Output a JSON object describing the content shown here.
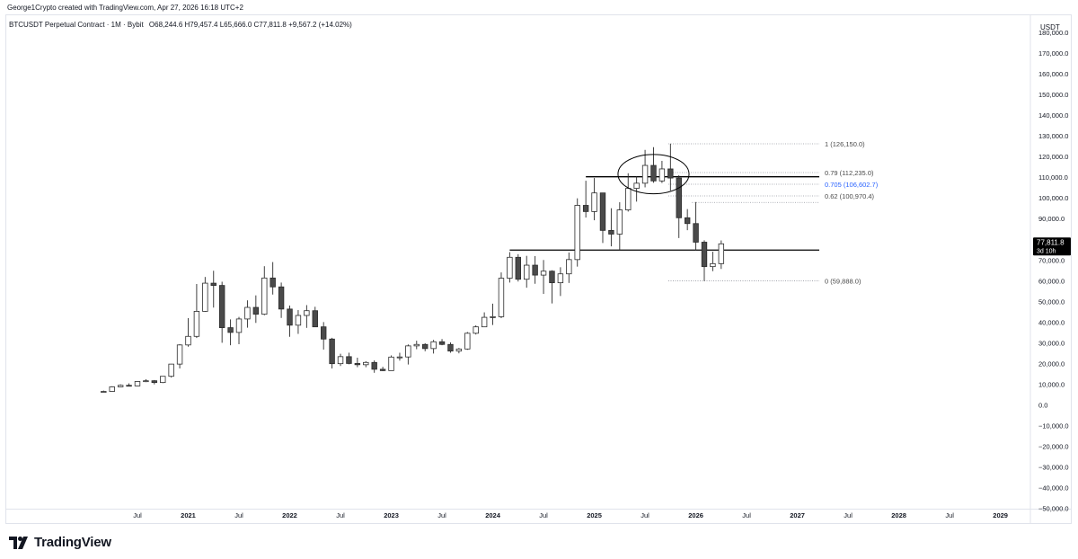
{
  "header": {
    "credit": "George1Crypto created with TradingView.com, Apr 27, 2026 16:18 UTC+2"
  },
  "legend": {
    "symbol": "BTCUSDT Perpetual Contract · 1M · Bybit",
    "open": "O68,244.6",
    "high": "H79,457.4",
    "low": "L65,666.0",
    "close": "C77,811.8",
    "change": "+9,567.2 (+14.02%)"
  },
  "footer": {
    "brand": "TradingView"
  },
  "colors": {
    "up": "#ffffff",
    "down": "#4a4a4a",
    "outline": "#2b2b2b",
    "accent_fib": "#2962ff",
    "price_tag": "#000000"
  },
  "chart_data": {
    "type": "candlestick",
    "currency_label": "USDT",
    "ylim": [
      -50000,
      185000
    ],
    "xlim": [
      "2020-01",
      "2029-06"
    ],
    "y_ticks": [
      180000,
      170000,
      160000,
      150000,
      140000,
      130000,
      120000,
      110000,
      100000,
      90000,
      80000,
      70000,
      60000,
      50000,
      40000,
      30000,
      20000,
      10000,
      0,
      -10000,
      -20000,
      -30000,
      -40000,
      -50000
    ],
    "y_tick_labels": [
      "180,000.0",
      "170,000.0",
      "160,000.0",
      "150,000.0",
      "140,000.0",
      "130,000.0",
      "120,000.0",
      "110,000.0",
      "100,000.0",
      "90,000.0",
      "80,000.0",
      "70,000.0",
      "60,000.0",
      "50,000.0",
      "40,000.0",
      "30,000.0",
      "20,000.0",
      "10,000.0",
      "0.0",
      "−10,000.0",
      "−20,000.0",
      "−30,000.0",
      "−40,000.0",
      "−50,000.0"
    ],
    "x_ticks": [
      {
        "label": "Jul",
        "date": "2020-07"
      },
      {
        "label": "2021",
        "date": "2021-01"
      },
      {
        "label": "Jul",
        "date": "2021-07"
      },
      {
        "label": "2022",
        "date": "2022-01"
      },
      {
        "label": "Jul",
        "date": "2022-07"
      },
      {
        "label": "2023",
        "date": "2023-01"
      },
      {
        "label": "Jul",
        "date": "2023-07"
      },
      {
        "label": "2024",
        "date": "2024-01"
      },
      {
        "label": "Jul",
        "date": "2024-07"
      },
      {
        "label": "2025",
        "date": "2025-01"
      },
      {
        "label": "Jul",
        "date": "2025-07"
      },
      {
        "label": "2026",
        "date": "2026-01"
      },
      {
        "label": "Jul",
        "date": "2026-07"
      },
      {
        "label": "2027",
        "date": "2027-01"
      },
      {
        "label": "Jul",
        "date": "2027-07"
      },
      {
        "label": "2028",
        "date": "2028-01"
      },
      {
        "label": "Jul",
        "date": "2028-07"
      },
      {
        "label": "2029",
        "date": "2029-01"
      }
    ],
    "candles": [
      [
        "2020-03",
        6400,
        6900,
        6100,
        6500
      ],
      [
        "2020-04",
        6500,
        9000,
        6400,
        8700
      ],
      [
        "2020-05",
        8700,
        9900,
        8600,
        9450
      ],
      [
        "2020-06",
        9450,
        10400,
        8900,
        9150
      ],
      [
        "2020-07",
        9150,
        11400,
        9000,
        11300
      ],
      [
        "2020-08",
        11300,
        12400,
        11000,
        11650
      ],
      [
        "2020-09",
        11650,
        12000,
        9900,
        10800
      ],
      [
        "2020-10",
        10800,
        13900,
        10500,
        13800
      ],
      [
        "2020-11",
        13800,
        19800,
        13200,
        19700
      ],
      [
        "2020-12",
        19700,
        29300,
        17600,
        28950
      ],
      [
        "2021-01",
        28950,
        41900,
        28100,
        33100
      ],
      [
        "2021-02",
        33100,
        58400,
        32300,
        45200
      ],
      [
        "2021-03",
        45200,
        61800,
        45000,
        58800
      ],
      [
        "2021-04",
        58800,
        64800,
        47000,
        57700
      ],
      [
        "2021-05",
        57700,
        59500,
        30000,
        37300
      ],
      [
        "2021-06",
        37300,
        41300,
        28800,
        35000
      ],
      [
        "2021-07",
        35000,
        42500,
        29300,
        41500
      ],
      [
        "2021-08",
        41500,
        50500,
        37300,
        47100
      ],
      [
        "2021-09",
        47100,
        52900,
        39600,
        43800
      ],
      [
        "2021-10",
        43800,
        67000,
        43300,
        61300
      ],
      [
        "2021-11",
        61300,
        69000,
        53300,
        57000
      ],
      [
        "2021-12",
        57000,
        59100,
        42000,
        46300
      ],
      [
        "2022-01",
        46300,
        48000,
        32900,
        38500
      ],
      [
        "2022-02",
        38500,
        45800,
        34300,
        43200
      ],
      [
        "2022-03",
        43200,
        48200,
        37200,
        45500
      ],
      [
        "2022-04",
        45500,
        47400,
        37600,
        37700
      ],
      [
        "2022-05",
        37700,
        40000,
        26700,
        31800
      ],
      [
        "2022-06",
        31800,
        32400,
        17600,
        19900
      ],
      [
        "2022-07",
        19900,
        24700,
        18800,
        23300
      ],
      [
        "2022-08",
        23300,
        25200,
        19600,
        20000
      ],
      [
        "2022-09",
        20000,
        22800,
        18200,
        19400
      ],
      [
        "2022-10",
        19400,
        21100,
        18200,
        20500
      ],
      [
        "2022-11",
        20500,
        21500,
        15500,
        17200
      ],
      [
        "2022-12",
        17200,
        18400,
        16300,
        16550
      ],
      [
        "2023-01",
        16550,
        23900,
        16500,
        23100
      ],
      [
        "2023-02",
        23100,
        25200,
        21400,
        23150
      ],
      [
        "2023-03",
        23150,
        29200,
        19500,
        28500
      ],
      [
        "2023-04",
        28500,
        31000,
        26900,
        29200
      ],
      [
        "2023-05",
        29200,
        29800,
        25900,
        27200
      ],
      [
        "2023-06",
        27200,
        31400,
        24800,
        30500
      ],
      [
        "2023-07",
        30500,
        31800,
        28800,
        29200
      ],
      [
        "2023-08",
        29200,
        30200,
        25200,
        26000
      ],
      [
        "2023-09",
        26000,
        27500,
        24900,
        27000
      ],
      [
        "2023-10",
        27000,
        35200,
        26600,
        34600
      ],
      [
        "2023-11",
        34600,
        38400,
        34000,
        37700
      ],
      [
        "2023-12",
        37700,
        44700,
        37600,
        42300
      ],
      [
        "2024-01",
        42300,
        48900,
        38600,
        42600
      ],
      [
        "2024-02",
        42600,
        64000,
        41900,
        61200
      ],
      [
        "2024-03",
        61200,
        73800,
        59100,
        71300
      ],
      [
        "2024-04",
        71300,
        72800,
        59600,
        60700
      ],
      [
        "2024-05",
        60700,
        72000,
        56600,
        67500
      ],
      [
        "2024-06",
        67500,
        71900,
        58500,
        62700
      ],
      [
        "2024-07",
        62700,
        70000,
        53600,
        64600
      ],
      [
        "2024-08",
        64600,
        65000,
        49000,
        59000
      ],
      [
        "2024-09",
        59000,
        66500,
        52600,
        63300
      ],
      [
        "2024-10",
        63300,
        73600,
        58900,
        70200
      ],
      [
        "2024-11",
        70200,
        99800,
        66800,
        96400
      ],
      [
        "2024-12",
        96400,
        108300,
        90500,
        93400
      ],
      [
        "2025-01",
        93400,
        109600,
        89200,
        102400
      ],
      [
        "2025-02",
        102400,
        102500,
        78200,
        84300
      ],
      [
        "2025-03",
        84300,
        95000,
        76600,
        82500
      ],
      [
        "2025-04",
        82500,
        97900,
        74400,
        94200
      ],
      [
        "2025-05",
        94200,
        111900,
        93400,
        104600
      ],
      [
        "2025-06",
        104600,
        110400,
        98200,
        107100
      ],
      [
        "2025-07",
        107100,
        123200,
        105100,
        115700
      ],
      [
        "2025-08",
        115700,
        124500,
        107300,
        108200
      ],
      [
        "2025-09",
        108200,
        117900,
        107200,
        114000
      ],
      [
        "2025-10",
        114000,
        126200,
        103500,
        109600
      ],
      [
        "2025-11",
        109600,
        111000,
        80600,
        90400
      ],
      [
        "2025-12",
        90400,
        94600,
        84400,
        87600
      ],
      [
        "2026-01",
        87600,
        98000,
        74500,
        78600
      ],
      [
        "2026-02",
        78600,
        79500,
        59888,
        66800
      ],
      [
        "2026-03",
        66800,
        74000,
        64600,
        68244.6
      ],
      [
        "2026-04",
        68244.6,
        79457.4,
        65666,
        77811.8
      ]
    ],
    "last_price_label": "77,811.8",
    "last_price_countdown": "3d 10h",
    "fib_levels": [
      {
        "label": "1 (126,150.0)",
        "value": 126150,
        "highlight": false
      },
      {
        "label": "0.79 (112,235.0)",
        "value": 112235,
        "highlight": false
      },
      {
        "label": "0.705 (106,602.7)",
        "value": 106602.7,
        "highlight": true
      },
      {
        "label": "0.62 (100,970.4)",
        "value": 100970.4,
        "highlight": false
      },
      {
        "label": "0 (59,888.0)",
        "value": 59888,
        "highlight": false
      }
    ],
    "extra_dotted_levels": [
      97800
    ],
    "horizontal_lines": [
      {
        "value": 110200,
        "from": "2024-12",
        "to": "2027-02"
      },
      {
        "value": 74800,
        "from": "2024-03",
        "to": "2027-02"
      }
    ],
    "ellipse": {
      "center": [
        "2025-08",
        111500
      ],
      "rx_months": 4.2,
      "ry_value": 9500
    }
  }
}
